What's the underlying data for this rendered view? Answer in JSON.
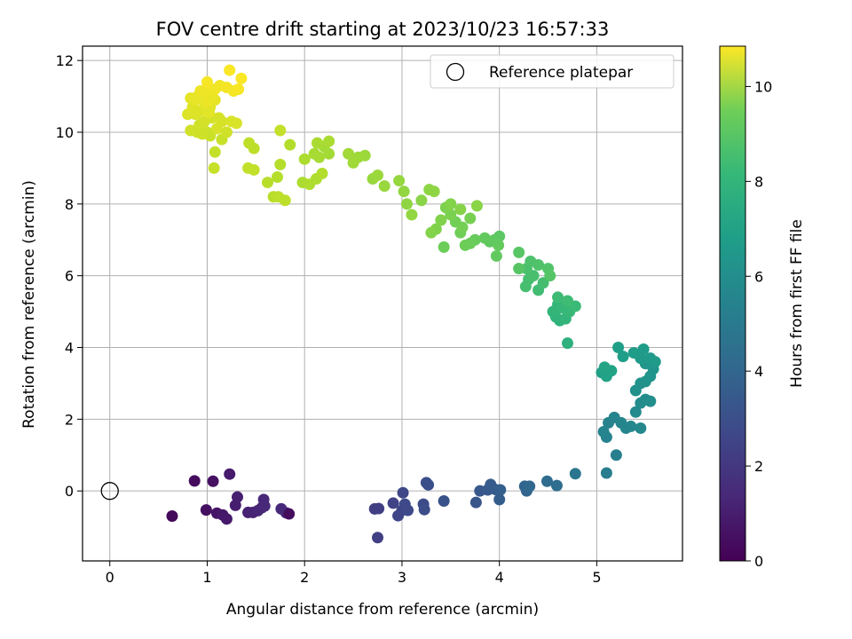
{
  "chart_data": {
    "type": "scatter",
    "title": "FOV centre drift starting at 2023/10/23 16:57:33",
    "xlabel": "Angular distance from reference (arcmin)",
    "ylabel": "Rotation from reference (arcmin)",
    "xlim": [
      -0.28,
      5.88
    ],
    "ylim": [
      -1.95,
      12.4
    ],
    "xticks": [
      0,
      1,
      2,
      3,
      4,
      5
    ],
    "yticks": [
      0,
      2,
      4,
      6,
      8,
      10,
      12
    ],
    "grid": true,
    "legend": {
      "placement": "top-right",
      "entries": [
        "Reference platepar"
      ]
    },
    "reference_point": {
      "x": 0,
      "y": 0,
      "marker": "open-circle"
    },
    "colorbar": {
      "label": "Hours from first FF file",
      "min": 0,
      "max": 10.85,
      "ticks": [
        0,
        2,
        4,
        6,
        8,
        10
      ],
      "colormap": "viridis"
    },
    "points": [
      {
        "x": 0.64,
        "y": -0.7,
        "h": 0.25
      },
      {
        "x": 0.87,
        "y": 0.28,
        "h": 0.35
      },
      {
        "x": 0.99,
        "y": -0.53,
        "h": 0.45
      },
      {
        "x": 1.06,
        "y": 0.27,
        "h": 0.5
      },
      {
        "x": 1.1,
        "y": -0.62,
        "h": 0.6
      },
      {
        "x": 1.16,
        "y": -0.67,
        "h": 0.7
      },
      {
        "x": 1.2,
        "y": -0.78,
        "h": 0.75
      },
      {
        "x": 1.23,
        "y": 0.47,
        "h": 0.8
      },
      {
        "x": 1.29,
        "y": -0.4,
        "h": 0.9
      },
      {
        "x": 1.31,
        "y": -0.17,
        "h": 0.95
      },
      {
        "x": 1.42,
        "y": -0.6,
        "h": 1.0
      },
      {
        "x": 1.47,
        "y": -0.6,
        "h": 1.05
      },
      {
        "x": 1.52,
        "y": -0.55,
        "h": 1.1
      },
      {
        "x": 1.56,
        "y": -0.47,
        "h": 1.15
      },
      {
        "x": 1.59,
        "y": -0.42,
        "h": 1.2
      },
      {
        "x": 1.58,
        "y": -0.24,
        "h": 1.2
      },
      {
        "x": 1.76,
        "y": -0.5,
        "h": 1.25
      },
      {
        "x": 1.81,
        "y": -0.61,
        "h": 1.3
      },
      {
        "x": 1.84,
        "y": -0.64,
        "h": 0.35
      },
      {
        "x": 2.72,
        "y": -0.5,
        "h": 2.0
      },
      {
        "x": 2.76,
        "y": -0.49,
        "h": 2.05
      },
      {
        "x": 2.75,
        "y": -1.3,
        "h": 2.1
      },
      {
        "x": 2.91,
        "y": -0.34,
        "h": 2.2
      },
      {
        "x": 2.96,
        "y": -0.69,
        "h": 2.25
      },
      {
        "x": 3.0,
        "y": -0.54,
        "h": 2.3
      },
      {
        "x": 3.01,
        "y": -0.05,
        "h": 2.35
      },
      {
        "x": 3.03,
        "y": -0.37,
        "h": 2.4
      },
      {
        "x": 3.06,
        "y": -0.54,
        "h": 2.45
      },
      {
        "x": 3.22,
        "y": -0.37,
        "h": 2.5
      },
      {
        "x": 3.23,
        "y": -0.52,
        "h": 2.55
      },
      {
        "x": 3.25,
        "y": 0.23,
        "h": 2.6
      },
      {
        "x": 3.27,
        "y": 0.17,
        "h": 2.65
      },
      {
        "x": 3.43,
        "y": -0.28,
        "h": 2.75
      },
      {
        "x": 3.76,
        "y": -0.32,
        "h": 2.9
      },
      {
        "x": 3.8,
        "y": 0.0,
        "h": 3.0
      },
      {
        "x": 3.88,
        "y": 0.03,
        "h": 3.05
      },
      {
        "x": 3.91,
        "y": 0.18,
        "h": 3.1
      },
      {
        "x": 3.96,
        "y": 0.04,
        "h": 3.15
      },
      {
        "x": 4.0,
        "y": -0.24,
        "h": 3.2
      },
      {
        "x": 4.01,
        "y": 0.03,
        "h": 3.25
      },
      {
        "x": 4.26,
        "y": 0.13,
        "h": 3.5
      },
      {
        "x": 4.28,
        "y": 0.0,
        "h": 3.55
      },
      {
        "x": 4.31,
        "y": 0.13,
        "h": 3.6
      },
      {
        "x": 4.49,
        "y": 0.27,
        "h": 3.8
      },
      {
        "x": 4.59,
        "y": 0.15,
        "h": 3.9
      },
      {
        "x": 4.78,
        "y": 0.48,
        "h": 4.2
      },
      {
        "x": 5.1,
        "y": 0.5,
        "h": 4.6
      },
      {
        "x": 5.2,
        "y": 1.0,
        "h": 4.7
      },
      {
        "x": 5.1,
        "y": 1.5,
        "h": 4.8
      },
      {
        "x": 5.12,
        "y": 1.9,
        "h": 4.85
      },
      {
        "x": 5.18,
        "y": 2.05,
        "h": 4.9
      },
      {
        "x": 5.25,
        "y": 1.9,
        "h": 4.95
      },
      {
        "x": 5.3,
        "y": 1.75,
        "h": 5.0
      },
      {
        "x": 5.35,
        "y": 1.8,
        "h": 5.05
      },
      {
        "x": 5.45,
        "y": 1.75,
        "h": 5.1
      },
      {
        "x": 5.07,
        "y": 1.65,
        "h": 4.9
      },
      {
        "x": 5.4,
        "y": 2.2,
        "h": 5.15
      },
      {
        "x": 5.45,
        "y": 2.45,
        "h": 5.25
      },
      {
        "x": 5.5,
        "y": 2.55,
        "h": 5.3
      },
      {
        "x": 5.55,
        "y": 2.5,
        "h": 5.35
      },
      {
        "x": 5.4,
        "y": 2.8,
        "h": 5.45
      },
      {
        "x": 5.45,
        "y": 3.0,
        "h": 5.5
      },
      {
        "x": 5.5,
        "y": 3.05,
        "h": 5.55
      },
      {
        "x": 5.55,
        "y": 3.2,
        "h": 5.6
      },
      {
        "x": 5.58,
        "y": 3.4,
        "h": 5.65
      },
      {
        "x": 5.5,
        "y": 3.55,
        "h": 5.7
      },
      {
        "x": 5.45,
        "y": 3.7,
        "h": 5.8
      },
      {
        "x": 5.55,
        "y": 3.7,
        "h": 5.85
      },
      {
        "x": 5.6,
        "y": 3.6,
        "h": 5.9
      },
      {
        "x": 5.48,
        "y": 3.95,
        "h": 5.95
      },
      {
        "x": 5.38,
        "y": 3.85,
        "h": 6.0
      },
      {
        "x": 5.27,
        "y": 3.75,
        "h": 6.05
      },
      {
        "x": 5.22,
        "y": 4.0,
        "h": 6.1
      },
      {
        "x": 5.05,
        "y": 3.3,
        "h": 6.15
      },
      {
        "x": 5.1,
        "y": 3.2,
        "h": 6.2
      },
      {
        "x": 5.15,
        "y": 3.35,
        "h": 6.25
      },
      {
        "x": 5.08,
        "y": 3.45,
        "h": 6.3
      },
      {
        "x": 4.7,
        "y": 4.12,
        "h": 6.9
      },
      {
        "x": 4.62,
        "y": 4.75,
        "h": 7.0
      },
      {
        "x": 4.58,
        "y": 4.85,
        "h": 7.05
      },
      {
        "x": 4.68,
        "y": 4.8,
        "h": 7.1
      },
      {
        "x": 4.55,
        "y": 5.0,
        "h": 7.15
      },
      {
        "x": 4.6,
        "y": 5.2,
        "h": 7.2
      },
      {
        "x": 4.65,
        "y": 5.1,
        "h": 7.25
      },
      {
        "x": 4.72,
        "y": 5.0,
        "h": 7.3
      },
      {
        "x": 4.78,
        "y": 5.15,
        "h": 7.35
      },
      {
        "x": 4.6,
        "y": 5.4,
        "h": 7.4
      },
      {
        "x": 4.7,
        "y": 5.3,
        "h": 7.45
      },
      {
        "x": 4.4,
        "y": 5.6,
        "h": 7.5
      },
      {
        "x": 4.45,
        "y": 5.8,
        "h": 7.55
      },
      {
        "x": 4.3,
        "y": 5.9,
        "h": 7.6
      },
      {
        "x": 4.35,
        "y": 6.0,
        "h": 7.65
      },
      {
        "x": 4.28,
        "y": 6.2,
        "h": 7.7
      },
      {
        "x": 4.32,
        "y": 6.4,
        "h": 7.75
      },
      {
        "x": 4.4,
        "y": 6.3,
        "h": 7.8
      },
      {
        "x": 4.5,
        "y": 6.2,
        "h": 7.85
      },
      {
        "x": 4.52,
        "y": 6.0,
        "h": 7.9
      },
      {
        "x": 4.2,
        "y": 6.2,
        "h": 7.95
      },
      {
        "x": 4.2,
        "y": 6.65,
        "h": 8.0
      },
      {
        "x": 4.27,
        "y": 5.7,
        "h": 7.6
      },
      {
        "x": 4.0,
        "y": 7.1,
        "h": 8.05
      },
      {
        "x": 3.95,
        "y": 7.0,
        "h": 8.1
      },
      {
        "x": 3.9,
        "y": 6.95,
        "h": 8.15
      },
      {
        "x": 3.85,
        "y": 7.05,
        "h": 8.2
      },
      {
        "x": 3.97,
        "y": 6.55,
        "h": 8.2
      },
      {
        "x": 3.99,
        "y": 6.85,
        "h": 8.25
      },
      {
        "x": 3.75,
        "y": 7.0,
        "h": 8.3
      },
      {
        "x": 3.7,
        "y": 6.9,
        "h": 8.35
      },
      {
        "x": 3.65,
        "y": 6.85,
        "h": 8.4
      },
      {
        "x": 3.6,
        "y": 7.2,
        "h": 8.45
      },
      {
        "x": 3.55,
        "y": 7.5,
        "h": 8.5
      },
      {
        "x": 3.62,
        "y": 7.35,
        "h": 8.55
      },
      {
        "x": 3.7,
        "y": 7.6,
        "h": 8.6
      },
      {
        "x": 3.5,
        "y": 7.7,
        "h": 8.65
      },
      {
        "x": 3.45,
        "y": 7.9,
        "h": 8.7
      },
      {
        "x": 3.4,
        "y": 7.55,
        "h": 8.75
      },
      {
        "x": 3.35,
        "y": 7.3,
        "h": 8.75
      },
      {
        "x": 3.3,
        "y": 7.2,
        "h": 8.8
      },
      {
        "x": 3.43,
        "y": 6.8,
        "h": 8.4
      },
      {
        "x": 3.5,
        "y": 8.0,
        "h": 8.8
      },
      {
        "x": 3.6,
        "y": 7.85,
        "h": 8.85
      },
      {
        "x": 3.77,
        "y": 7.95,
        "h": 8.9
      },
      {
        "x": 3.2,
        "y": 8.1,
        "h": 8.9
      },
      {
        "x": 3.28,
        "y": 8.4,
        "h": 8.95
      },
      {
        "x": 3.33,
        "y": 8.35,
        "h": 9.0
      },
      {
        "x": 3.05,
        "y": 8.0,
        "h": 9.0
      },
      {
        "x": 3.1,
        "y": 7.7,
        "h": 9.05
      },
      {
        "x": 3.02,
        "y": 8.35,
        "h": 9.05
      },
      {
        "x": 2.97,
        "y": 8.65,
        "h": 9.1
      },
      {
        "x": 2.82,
        "y": 8.5,
        "h": 9.15
      },
      {
        "x": 2.7,
        "y": 8.7,
        "h": 9.15
      },
      {
        "x": 2.75,
        "y": 8.8,
        "h": 9.2
      },
      {
        "x": 2.62,
        "y": 9.35,
        "h": 9.2
      },
      {
        "x": 2.55,
        "y": 9.3,
        "h": 9.25
      },
      {
        "x": 2.5,
        "y": 9.15,
        "h": 9.3
      },
      {
        "x": 2.45,
        "y": 9.4,
        "h": 9.3
      },
      {
        "x": 2.25,
        "y": 9.4,
        "h": 9.35
      },
      {
        "x": 2.2,
        "y": 9.6,
        "h": 9.35
      },
      {
        "x": 2.15,
        "y": 9.3,
        "h": 9.4
      },
      {
        "x": 2.1,
        "y": 9.4,
        "h": 9.4
      },
      {
        "x": 2.13,
        "y": 9.7,
        "h": 9.45
      },
      {
        "x": 2.25,
        "y": 9.75,
        "h": 9.45
      },
      {
        "x": 2.0,
        "y": 9.25,
        "h": 9.5
      },
      {
        "x": 1.98,
        "y": 8.6,
        "h": 9.5
      },
      {
        "x": 2.05,
        "y": 8.55,
        "h": 9.55
      },
      {
        "x": 2.12,
        "y": 8.7,
        "h": 9.55
      },
      {
        "x": 2.18,
        "y": 8.85,
        "h": 9.6
      },
      {
        "x": 1.85,
        "y": 9.65,
        "h": 9.6
      },
      {
        "x": 1.75,
        "y": 9.1,
        "h": 9.65
      },
      {
        "x": 1.72,
        "y": 8.75,
        "h": 9.65
      },
      {
        "x": 1.62,
        "y": 8.6,
        "h": 9.7
      },
      {
        "x": 1.68,
        "y": 8.2,
        "h": 9.7
      },
      {
        "x": 1.73,
        "y": 8.2,
        "h": 9.75
      },
      {
        "x": 1.8,
        "y": 8.1,
        "h": 9.75
      },
      {
        "x": 1.43,
        "y": 9.7,
        "h": 9.8
      },
      {
        "x": 1.48,
        "y": 9.55,
        "h": 9.8
      },
      {
        "x": 1.42,
        "y": 9.0,
        "h": 9.85
      },
      {
        "x": 1.48,
        "y": 8.95,
        "h": 9.85
      },
      {
        "x": 1.75,
        "y": 10.05,
        "h": 9.9
      },
      {
        "x": 1.08,
        "y": 9.45,
        "h": 9.9
      },
      {
        "x": 1.07,
        "y": 9.0,
        "h": 9.95
      },
      {
        "x": 1.15,
        "y": 9.8,
        "h": 9.95
      },
      {
        "x": 1.03,
        "y": 9.9,
        "h": 10.0
      },
      {
        "x": 1.0,
        "y": 10.0,
        "h": 10.0
      },
      {
        "x": 0.95,
        "y": 9.95,
        "h": 10.05
      },
      {
        "x": 0.9,
        "y": 10.0,
        "h": 10.05
      },
      {
        "x": 0.83,
        "y": 10.05,
        "h": 10.1
      },
      {
        "x": 0.92,
        "y": 10.2,
        "h": 10.1
      },
      {
        "x": 0.97,
        "y": 10.3,
        "h": 10.15
      },
      {
        "x": 1.05,
        "y": 10.4,
        "h": 10.15
      },
      {
        "x": 1.12,
        "y": 10.4,
        "h": 10.2
      },
      {
        "x": 1.15,
        "y": 10.3,
        "h": 10.2
      },
      {
        "x": 1.25,
        "y": 10.3,
        "h": 10.25
      },
      {
        "x": 1.3,
        "y": 10.25,
        "h": 10.25
      },
      {
        "x": 0.88,
        "y": 10.5,
        "h": 10.3
      },
      {
        "x": 0.8,
        "y": 10.5,
        "h": 10.3
      },
      {
        "x": 0.85,
        "y": 10.7,
        "h": 10.35
      },
      {
        "x": 0.93,
        "y": 10.6,
        "h": 10.35
      },
      {
        "x": 0.98,
        "y": 10.75,
        "h": 10.4
      },
      {
        "x": 1.03,
        "y": 10.7,
        "h": 10.4
      },
      {
        "x": 1.08,
        "y": 10.9,
        "h": 10.45
      },
      {
        "x": 0.83,
        "y": 10.95,
        "h": 10.45
      },
      {
        "x": 0.9,
        "y": 11.0,
        "h": 10.5
      },
      {
        "x": 0.95,
        "y": 11.05,
        "h": 10.5
      },
      {
        "x": 1.0,
        "y": 10.85,
        "h": 10.55
      },
      {
        "x": 1.05,
        "y": 11.0,
        "h": 10.55
      },
      {
        "x": 1.0,
        "y": 11.2,
        "h": 10.6
      },
      {
        "x": 0.93,
        "y": 11.15,
        "h": 10.6
      },
      {
        "x": 1.08,
        "y": 11.2,
        "h": 10.65
      },
      {
        "x": 1.13,
        "y": 11.3,
        "h": 10.65
      },
      {
        "x": 1.2,
        "y": 11.25,
        "h": 10.7
      },
      {
        "x": 1.27,
        "y": 11.15,
        "h": 10.7
      },
      {
        "x": 1.32,
        "y": 11.2,
        "h": 10.75
      },
      {
        "x": 1.23,
        "y": 11.73,
        "h": 10.8
      },
      {
        "x": 1.35,
        "y": 11.5,
        "h": 10.8
      },
      {
        "x": 1.0,
        "y": 11.4,
        "h": 10.75
      },
      {
        "x": 1.1,
        "y": 10.1,
        "h": 10.2
      },
      {
        "x": 1.2,
        "y": 10.0,
        "h": 10.1
      },
      {
        "x": 0.88,
        "y": 10.9,
        "h": 10.5
      },
      {
        "x": 1.02,
        "y": 10.55,
        "h": 10.4
      }
    ]
  }
}
